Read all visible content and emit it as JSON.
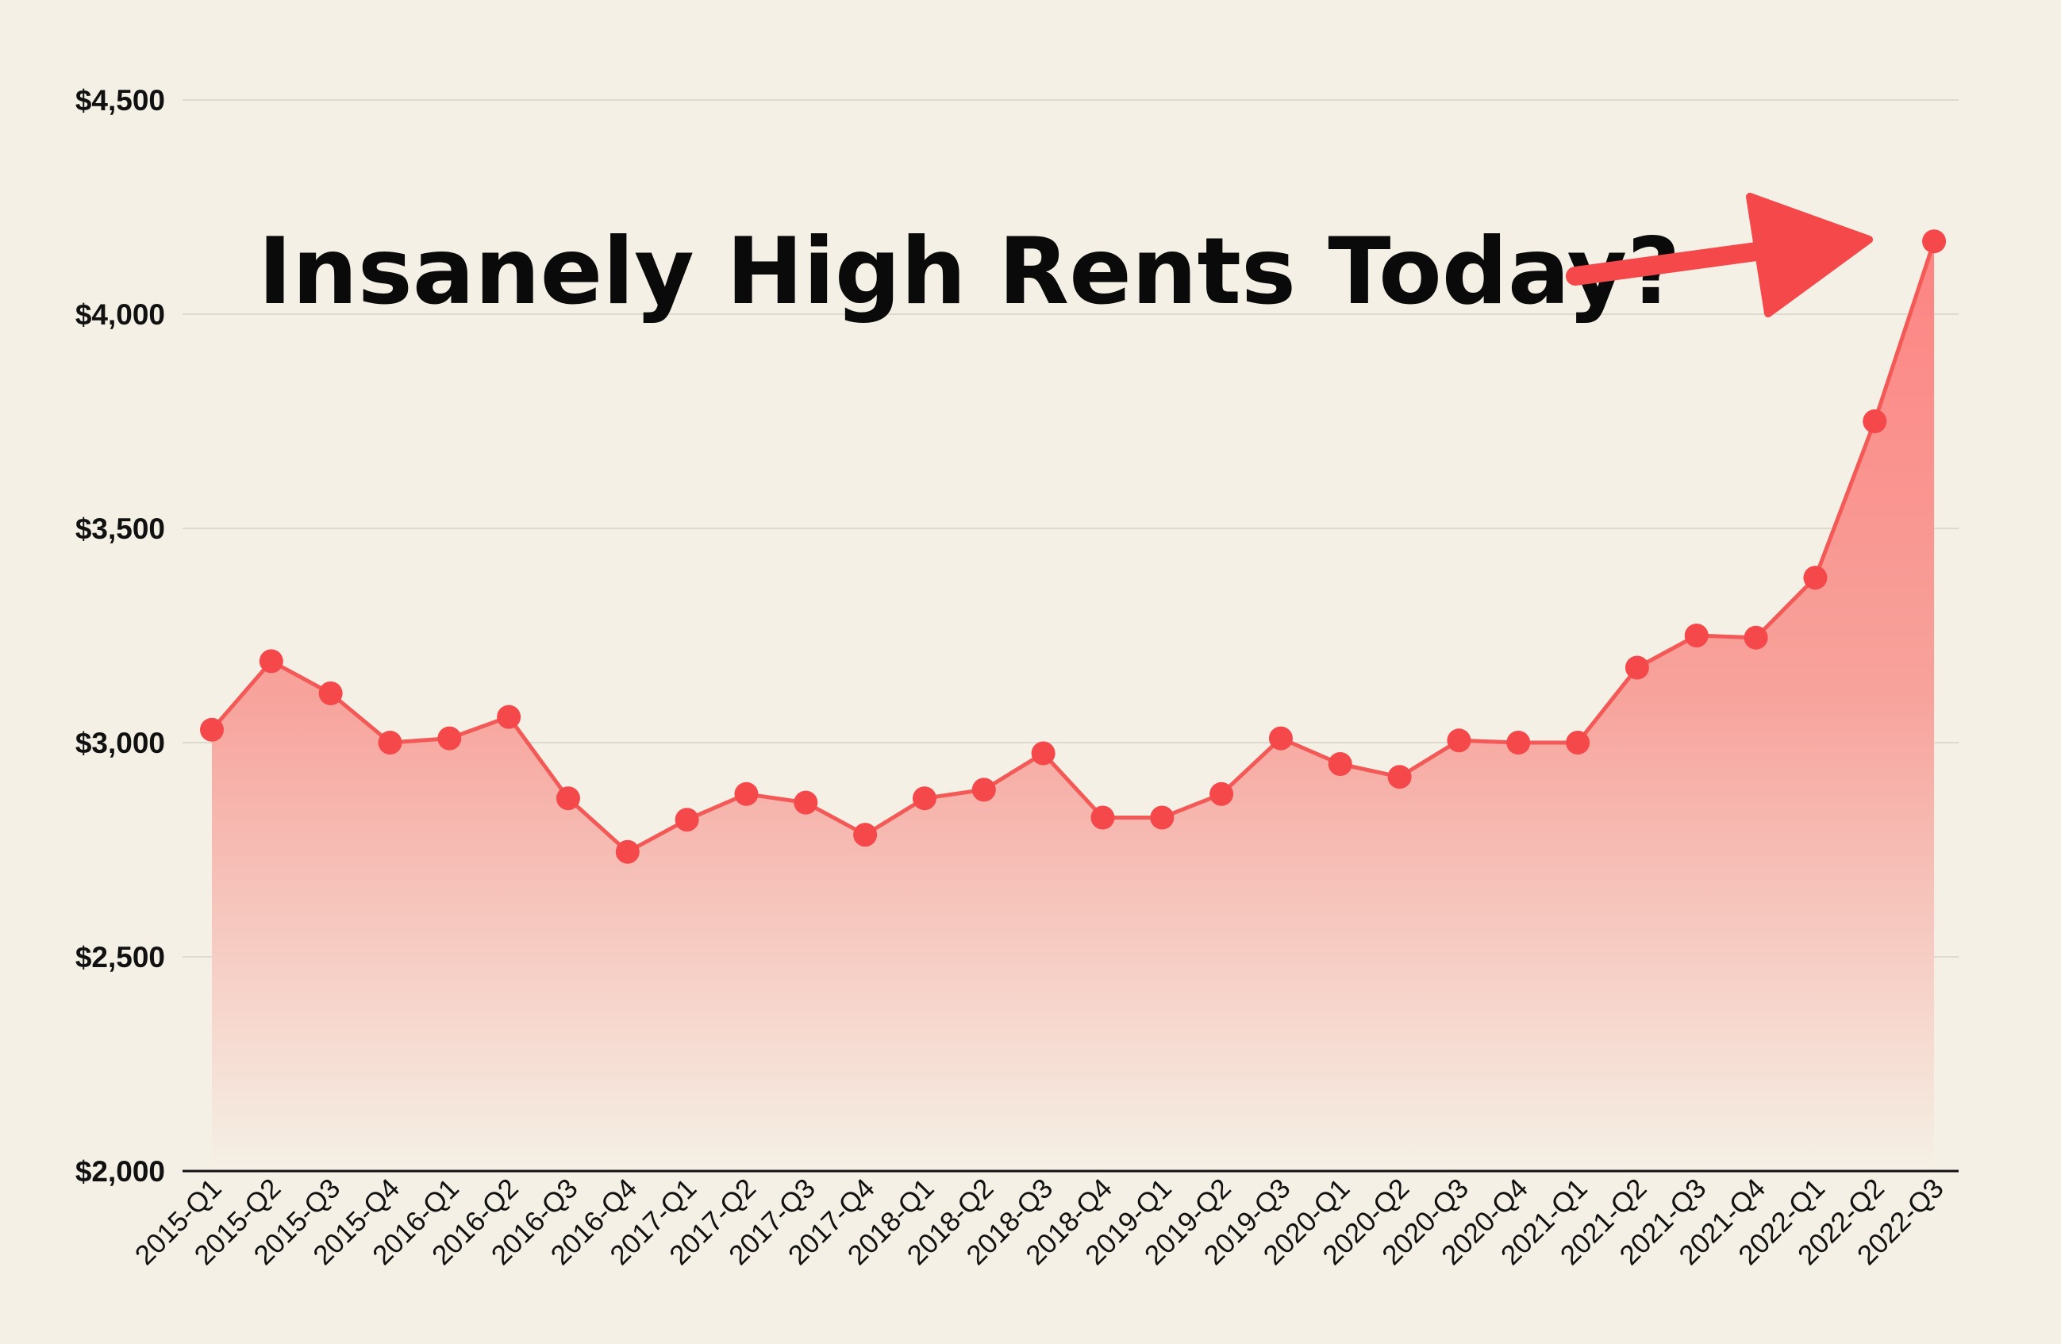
{
  "chart_data": {
    "type": "area",
    "annotation": "Insanely High Rents Today?",
    "categories": [
      "2015-Q1",
      "2015-Q2",
      "2015-Q3",
      "2015-Q4",
      "2016-Q1",
      "2016-Q2",
      "2016-Q3",
      "2016-Q4",
      "2017-Q1",
      "2017-Q2",
      "2017-Q3",
      "2017-Q4",
      "2018-Q1",
      "2018-Q2",
      "2018-Q3",
      "2018-Q4",
      "2019-Q1",
      "2019-Q2",
      "2019-Q3",
      "2020-Q1",
      "2020-Q2",
      "2020-Q3",
      "2020-Q4",
      "2021-Q1",
      "2021-Q2",
      "2021-Q3",
      "2021-Q4",
      "2022-Q1",
      "2022-Q2",
      "2022-Q3"
    ],
    "values": [
      3030,
      3190,
      3115,
      3000,
      3010,
      3060,
      2870,
      2745,
      2820,
      2880,
      2860,
      2785,
      2870,
      2890,
      2975,
      2825,
      2825,
      2880,
      3010,
      2950,
      2920,
      3005,
      3000,
      3000,
      3175,
      3250,
      3245,
      3385,
      3750,
      4170
    ],
    "yticks": [
      "$2,000",
      "$2,500",
      "$3,000",
      "$3,500",
      "$4,000",
      "$4,500"
    ],
    "ytick_values": [
      2000,
      2500,
      3000,
      3500,
      4000,
      4500
    ],
    "ylim": [
      2000,
      4500
    ],
    "grid": true,
    "xlabel": "",
    "ylabel": ""
  },
  "colors": {
    "background": "#f5f0e5",
    "line": "#f35a57",
    "marker": "#f5484b",
    "area_top": "#ff7b7b",
    "area_bottom": "#f5f0e5",
    "arrow": "#f5484b",
    "grid": "#dedad0",
    "axis": "#111111"
  }
}
